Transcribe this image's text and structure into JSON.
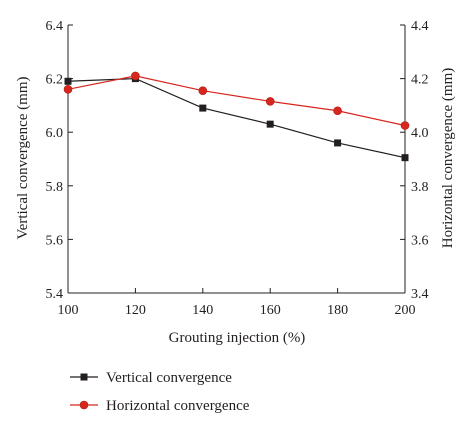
{
  "chart_data": {
    "type": "line",
    "xlabel": "Grouting injection (%)",
    "ylabel_left": "Vertical convergence (mm)",
    "ylabel_right": "Horizontal convergence (mm)",
    "x": [
      100,
      120,
      140,
      160,
      180,
      200
    ],
    "xlim": [
      100,
      200
    ],
    "x_ticks": [
      "100",
      "120",
      "140",
      "160",
      "180",
      "200"
    ],
    "ylim_left": [
      5.4,
      6.4
    ],
    "y_ticks_left": [
      "5.4",
      "5.6",
      "5.8",
      "6.0",
      "6.2",
      "6.4"
    ],
    "ylim_right": [
      3.4,
      4.4
    ],
    "y_ticks_right": [
      "3.4",
      "3.6",
      "3.8",
      "4.0",
      "4.2",
      "4.4"
    ],
    "grid": false,
    "legend_position": "bottom-left",
    "series": [
      {
        "name": "Vertical convergence",
        "axis": "left",
        "marker": "square",
        "color": "#231f20",
        "values": [
          6.19,
          6.2,
          6.09,
          6.03,
          5.96,
          5.905
        ]
      },
      {
        "name": "Horizontal convergence",
        "axis": "right",
        "marker": "circle",
        "color": "#d7261e",
        "values": [
          4.16,
          4.21,
          4.155,
          4.115,
          4.08,
          4.025
        ]
      }
    ]
  }
}
